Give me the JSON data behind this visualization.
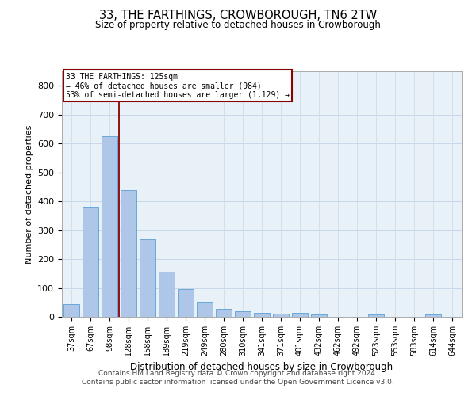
{
  "title": "33, THE FARTHINGS, CROWBOROUGH, TN6 2TW",
  "subtitle": "Size of property relative to detached houses in Crowborough",
  "xlabel": "Distribution of detached houses by size in Crowborough",
  "ylabel": "Number of detached properties",
  "categories": [
    "37sqm",
    "67sqm",
    "98sqm",
    "128sqm",
    "158sqm",
    "189sqm",
    "219sqm",
    "249sqm",
    "280sqm",
    "310sqm",
    "341sqm",
    "371sqm",
    "401sqm",
    "432sqm",
    "462sqm",
    "492sqm",
    "523sqm",
    "553sqm",
    "583sqm",
    "614sqm",
    "644sqm"
  ],
  "values": [
    45,
    380,
    625,
    440,
    270,
    155,
    95,
    52,
    28,
    18,
    15,
    12,
    14,
    7,
    0,
    0,
    7,
    0,
    0,
    7,
    0
  ],
  "bar_color": "#aec6e8",
  "bar_edge_color": "#5a9fd4",
  "vline_x": 2.5,
  "vline_color": "#8b0000",
  "annotation_text": "33 THE FARTHINGS: 125sqm\n← 46% of detached houses are smaller (984)\n53% of semi-detached houses are larger (1,129) →",
  "annotation_box_color": "#8b0000",
  "ylim": [
    0,
    850
  ],
  "yticks": [
    0,
    100,
    200,
    300,
    400,
    500,
    600,
    700,
    800
  ],
  "grid_color": "#c8d8e8",
  "background_color": "#e8f0f8",
  "footnote1": "Contains HM Land Registry data © Crown copyright and database right 2024.",
  "footnote2": "Contains public sector information licensed under the Open Government Licence v3.0."
}
